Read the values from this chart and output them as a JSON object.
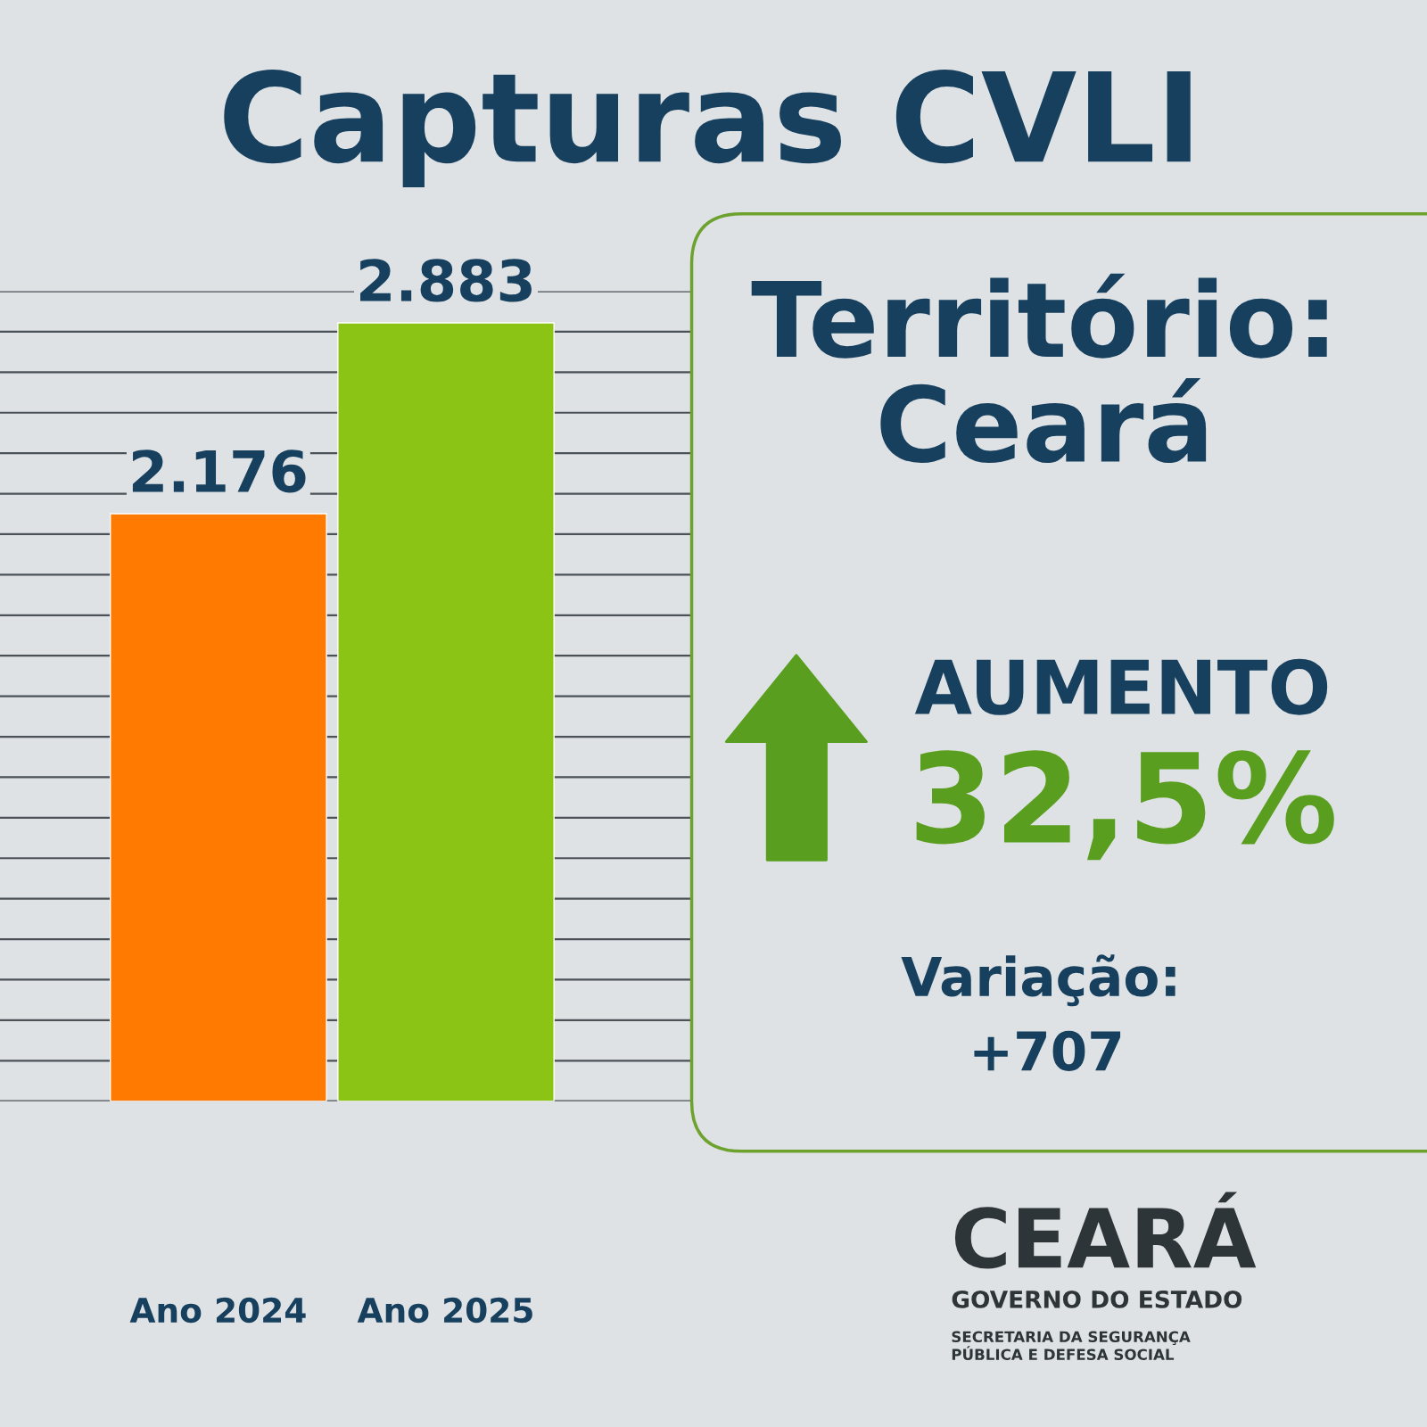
{
  "chart_data": {
    "type": "bar",
    "title": "Capturas CVLI",
    "subtitle": "Território:\nCeará",
    "categories": [
      "Ano 2024",
      "Ano 2025"
    ],
    "values": [
      2176,
      2883
    ],
    "colors": [
      "#ff7a00",
      "#8cc416"
    ],
    "value_labels": [
      "2.176",
      "2.883"
    ],
    "ylim": [
      0,
      3000
    ],
    "yticks": [
      {
        "value": 0,
        "label": null
      },
      {
        "value": 150,
        "label": null
      },
      {
        "value": 300,
        "label": null
      },
      {
        "value": 450,
        "label": null
      },
      {
        "value": 600,
        "label": null
      },
      {
        "value": 750,
        "label": null
      },
      {
        "value": 900,
        "label": null
      },
      {
        "value": 1050,
        "label": null
      },
      {
        "value": 1200,
        "label": null
      },
      {
        "value": 1350,
        "label": null
      },
      {
        "value": 1500,
        "label": null
      },
      {
        "value": 1650,
        "label": null
      },
      {
        "value": 1800,
        "label": null
      },
      {
        "value": 1950,
        "label": null
      },
      {
        "value": 2100,
        "label": null
      },
      {
        "value": 2250,
        "label": null
      },
      {
        "value": 2400,
        "label": null
      },
      {
        "value": 2550,
        "label": null
      },
      {
        "value": 2700,
        "label": null
      },
      {
        "value": 2850,
        "label": null
      },
      {
        "value": 3000,
        "label": null
      }
    ],
    "grid": "y",
    "tick_labels": "x",
    "annotations": [
      "AUMENTO",
      "32,5%",
      "Variação:",
      "+707",
      "CEARÁ",
      "GOVERNO DO ESTADO",
      "SECRETARIA DA SEGURANÇA\nPÚBLICA E DEFESA SOCIAL"
    ]
  }
}
